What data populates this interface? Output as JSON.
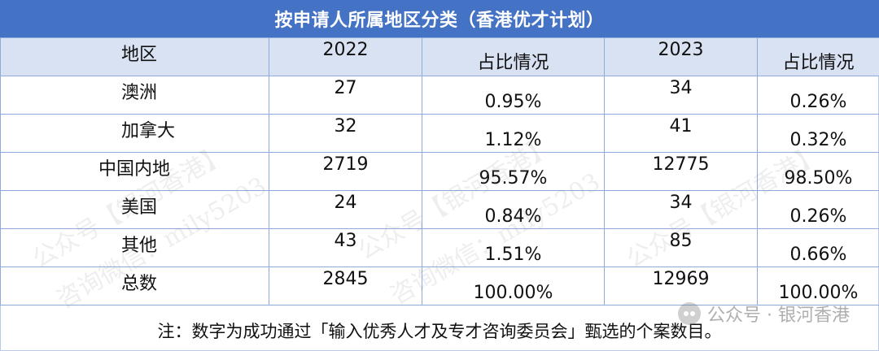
{
  "table": {
    "title": "按申请人所属地区分类（香港优才计划）",
    "headers": [
      "地区",
      "2022",
      "占比情况",
      "2023",
      "占比情况"
    ],
    "rows": [
      {
        "region": "澳洲",
        "count_2022": "27",
        "pct_2022": "0.95%",
        "count_2023": "34",
        "pct_2023": "0.26%"
      },
      {
        "region": "加拿大",
        "count_2022": "32",
        "pct_2022": "1.12%",
        "count_2023": "41",
        "pct_2023": "0.32%"
      },
      {
        "region": "中国内地",
        "count_2022": "2719",
        "pct_2022": "95.57%",
        "count_2023": "12775",
        "pct_2023": "98.50%"
      },
      {
        "region": "美国",
        "count_2022": "24",
        "pct_2022": "0.84%",
        "count_2023": "34",
        "pct_2023": "0.26%"
      },
      {
        "region": "其他",
        "count_2022": "43",
        "pct_2022": "1.51%",
        "count_2023": "85",
        "pct_2023": "0.66%"
      },
      {
        "region": "总数",
        "count_2022": "2845",
        "pct_2022": "100.00%",
        "count_2023": "12969",
        "pct_2023": "100.00%"
      }
    ],
    "footnote": "注：数字为成功通过「输入优秀人才及专才咨询委员会」甄选的个案数目。"
  },
  "watermark": {
    "lines": [
      "公众号【银河香港】",
      "咨询微信：mily5203"
    ]
  },
  "brand": {
    "icon": "wechat-icon",
    "label": "公众号 · 银河香港"
  }
}
